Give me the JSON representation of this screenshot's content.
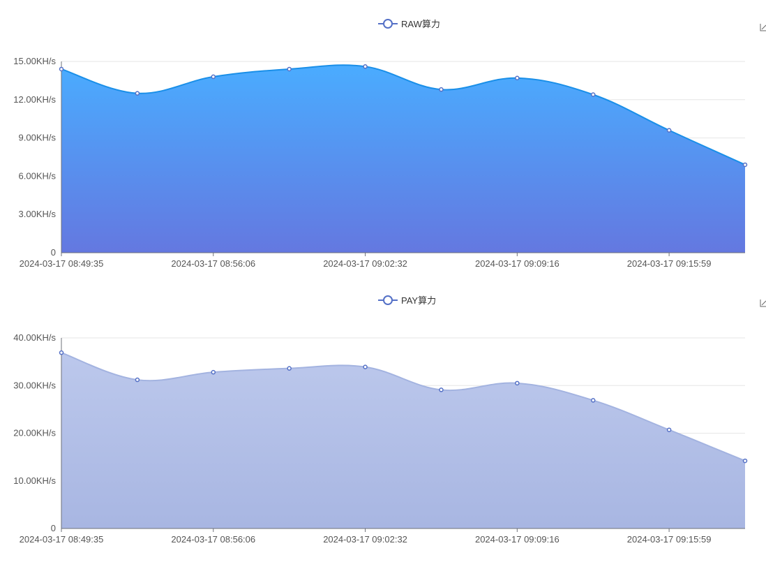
{
  "chart_data": [
    {
      "type": "area",
      "legend": "RAW算力",
      "legend_position": "top-center",
      "x": [
        "2024-03-17 08:49:35",
        "",
        "2024-03-17 08:56:06",
        "",
        "2024-03-17 09:02:32",
        "",
        "2024-03-17 09:09:16",
        "",
        "2024-03-17 09:15:59",
        ""
      ],
      "x_tick_labels": [
        "2024-03-17 08:49:35",
        "2024-03-17 08:56:06",
        "2024-03-17 09:02:32",
        "2024-03-17 09:09:16",
        "2024-03-17 09:15:59"
      ],
      "series": [
        {
          "name": "RAW算力",
          "values": [
            14.4,
            12.5,
            13.8,
            14.4,
            14.6,
            12.8,
            13.7,
            12.4,
            9.6,
            6.9
          ]
        }
      ],
      "ylim": [
        0,
        15
      ],
      "y_ticks": [
        0,
        3,
        6,
        9,
        12,
        15
      ],
      "y_tick_labels": [
        "0",
        "3.00KH/s",
        "6.00KH/s",
        "9.00KH/s",
        "12.00KH/s",
        "15.00KH/s"
      ],
      "grid": true,
      "colors": {
        "line": "#1a8fe8",
        "top": "#4aacff",
        "bottom": "#6478e0",
        "point": "#5470c6"
      }
    },
    {
      "type": "area",
      "legend": "PAY算力",
      "legend_position": "top-center",
      "x": [
        "2024-03-17 08:49:35",
        "",
        "2024-03-17 08:56:06",
        "",
        "2024-03-17 09:02:32",
        "",
        "2024-03-17 09:09:16",
        "",
        "2024-03-17 09:15:59",
        ""
      ],
      "x_tick_labels": [
        "2024-03-17 08:49:35",
        "2024-03-17 08:56:06",
        "2024-03-17 09:02:32",
        "2024-03-17 09:09:16",
        "2024-03-17 09:15:59"
      ],
      "series": [
        {
          "name": "PAY算力",
          "values": [
            36.9,
            31.2,
            32.8,
            33.6,
            33.9,
            29.1,
            30.5,
            26.9,
            20.7,
            14.2
          ]
        }
      ],
      "ylim": [
        0,
        40
      ],
      "y_ticks": [
        0,
        10,
        20,
        30,
        40
      ],
      "y_tick_labels": [
        "0",
        "10.00KH/s",
        "20.00KH/s",
        "30.00KH/s",
        "40.00KH/s"
      ],
      "grid": true,
      "colors": {
        "line": "#a3b3e0",
        "top": "#bcc8ec",
        "bottom": "#a8b6e2",
        "point": "#5470c6"
      }
    }
  ]
}
